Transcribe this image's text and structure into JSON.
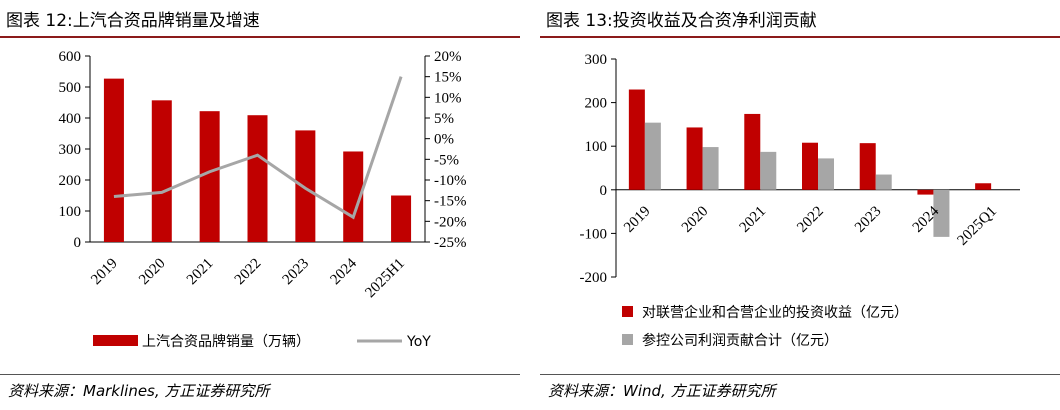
{
  "left": {
    "title": "图表 12:上汽合资品牌销量及增速",
    "source": "资料来源：Marklines, 方正证券研究所"
  },
  "right": {
    "title": "图表 13:投资收益及合资净利润贡献",
    "source": "资料来源：Wind, 方正证券研究所"
  },
  "colors": {
    "red": "#C00000",
    "gray": "#A6A6A6",
    "dark_red": "#8B1A1A"
  },
  "chart_data": [
    {
      "type": "bar",
      "categories": [
        "2019",
        "2020",
        "2021",
        "2022",
        "2023",
        "2024",
        "2025H1"
      ],
      "series": [
        {
          "name": "上汽合资品牌销量（万辆）",
          "values": [
            527,
            457,
            422,
            409,
            360,
            292,
            150
          ],
          "color": "#C00000"
        },
        {
          "name": "YoY",
          "type": "line",
          "axis": "right",
          "values": [
            -14,
            -13,
            -8,
            -4,
            -12,
            -19,
            15
          ],
          "color": "#A6A6A6"
        }
      ],
      "ylim": [
        0,
        600
      ],
      "yticks": [
        "0",
        "100",
        "200",
        "300",
        "400",
        "500",
        "600"
      ],
      "y2lim": [
        -25,
        20
      ],
      "y2ticks": [
        "-25%",
        "-20%",
        "-15%",
        "-10%",
        "-5%",
        "0%",
        "5%",
        "10%",
        "15%",
        "20%"
      ],
      "legend": "bottom",
      "grid": false
    },
    {
      "type": "bar",
      "categories": [
        "2019",
        "2020",
        "2021",
        "2022",
        "2023",
        "2024",
        "2025Q1"
      ],
      "series": [
        {
          "name": "对联营企业和合营企业的投资收益（亿元）",
          "values": [
            230,
            143,
            174,
            108,
            107,
            -11,
            15
          ],
          "color": "#C00000"
        },
        {
          "name": "参控公司利润贡献合计（亿元）",
          "values": [
            154,
            98,
            87,
            72,
            35,
            -108,
            null
          ],
          "color": "#A6A6A6"
        }
      ],
      "ylim": [
        -200,
        300
      ],
      "yticks": [
        "-200",
        "-100",
        "0",
        "100",
        "200",
        "300"
      ],
      "legend": "bottom",
      "grid": false
    }
  ]
}
